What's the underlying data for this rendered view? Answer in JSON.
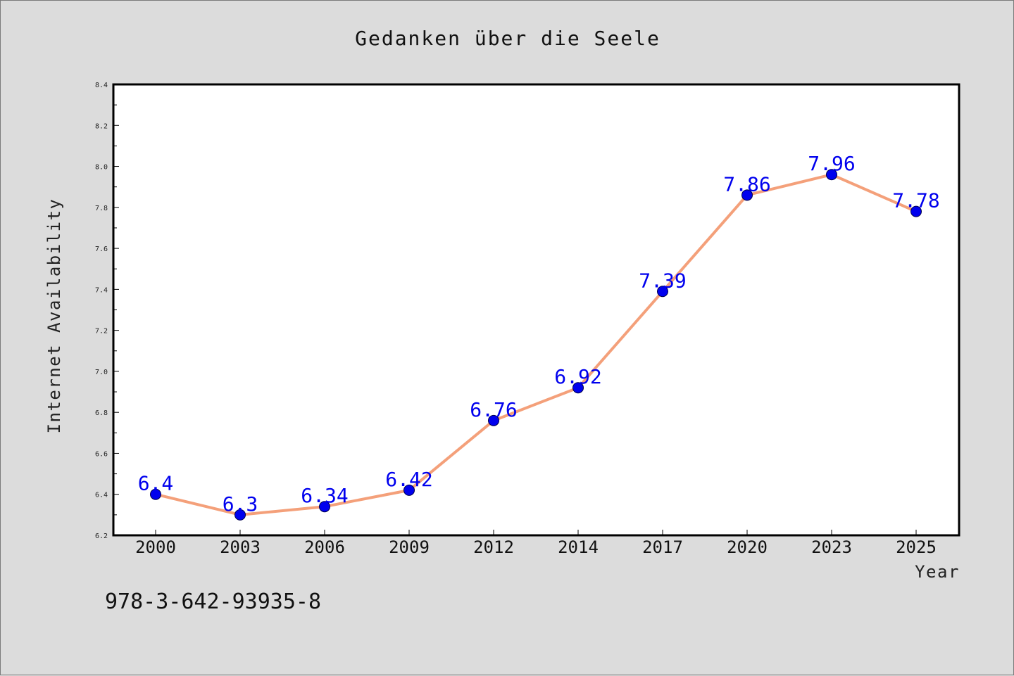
{
  "chart_data": {
    "type": "line",
    "title": "Gedanken über die Seele",
    "xlabel": "Year",
    "ylabel": "Internet Availability",
    "categories": [
      "2000",
      "2003",
      "2006",
      "2009",
      "2012",
      "2014",
      "2017",
      "2020",
      "2023",
      "2025"
    ],
    "series": [
      {
        "values": [
          6.4,
          6.3,
          6.34,
          6.42,
          6.76,
          6.92,
          7.39,
          7.86,
          7.96,
          7.78
        ],
        "data_labels": [
          "6.4",
          "6.3",
          "6.34",
          "6.42",
          "6.76",
          "6.92",
          "7.39",
          "7.86",
          "7.96",
          "7.78"
        ],
        "line_color": "#f4a07a",
        "marker_color": "#0000ee"
      }
    ],
    "ylim": [
      6.2,
      8.4
    ],
    "yticks": [
      "6.2",
      "6.4",
      "6.6",
      "6.8",
      "7.0",
      "7.2",
      "7.4",
      "7.6",
      "7.8",
      "8.0",
      "8.2",
      "8.4"
    ],
    "grid": false,
    "legend": "none"
  },
  "footer_text": "978-3-642-93935-8",
  "colors": {
    "background": "#dcdcdc",
    "plot_background": "#ffffff",
    "data_label": "#0000ee"
  }
}
